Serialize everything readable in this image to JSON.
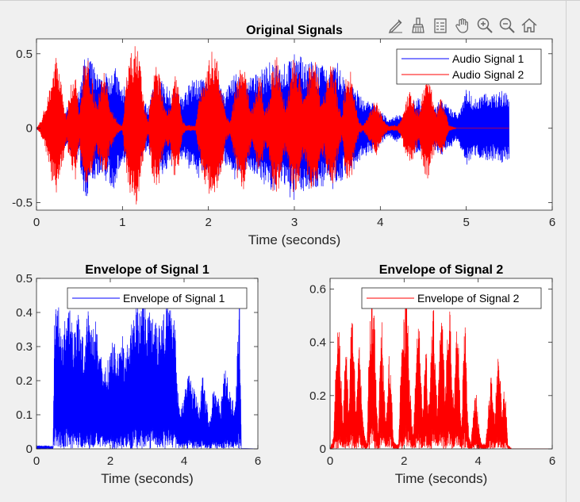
{
  "toolbar": {
    "icons": [
      "edit-plot-icon",
      "brush-icon",
      "legend-icon",
      "pan-hand-icon",
      "zoom-in-icon",
      "zoom-out-icon",
      "home-icon"
    ]
  },
  "colors": {
    "blue": "#0000ff",
    "red": "#ff0000",
    "axes_bg": "#ffffff",
    "figure_bg": "#f0f0f0"
  },
  "chart_data": [
    {
      "type": "line",
      "title": "Original Signals",
      "xlabel": "Time (seconds)",
      "ylabel": "",
      "xlim": [
        0,
        6
      ],
      "ylim": [
        -0.55,
        0.6
      ],
      "xticks": [
        "0",
        "1",
        "2",
        "3",
        "4",
        "5",
        "6"
      ],
      "yticks": [
        "-0.5",
        "0",
        "0.5"
      ],
      "legend": {
        "position": "top-right",
        "entries": [
          "Audio Signal 1",
          "Audio Signal 2"
        ]
      },
      "series": [
        {
          "name": "Audio Signal 1",
          "color": "#0000ff",
          "x": [
            0,
            0.05,
            0.2,
            0.3,
            0.4,
            0.5,
            0.55,
            0.6,
            0.75,
            0.9,
            1.0,
            1.05,
            1.1,
            1.2,
            1.3,
            1.4,
            1.5,
            1.6,
            1.7,
            1.8,
            1.9,
            2.0,
            2.1,
            2.2,
            2.3,
            2.4,
            2.5,
            2.6,
            2.7,
            2.8,
            2.9,
            3.0,
            3.1,
            3.2,
            3.3,
            3.4,
            3.5,
            3.6,
            3.7,
            3.8,
            3.9,
            4.0,
            4.1,
            4.2,
            4.3,
            4.4,
            4.5,
            4.6,
            4.7,
            4.8,
            4.9,
            5.0,
            5.1,
            5.2,
            5.3,
            5.4,
            5.5
          ],
          "y": [
            0.01,
            0.02,
            0.04,
            0.08,
            0.2,
            0.25,
            0.46,
            0.5,
            0.33,
            0.44,
            0.26,
            0.35,
            0.12,
            0.22,
            0.15,
            0.35,
            0.3,
            0.25,
            0.22,
            0.32,
            0.35,
            0.3,
            0.35,
            0.25,
            0.4,
            0.3,
            0.35,
            0.38,
            0.45,
            0.42,
            0.45,
            0.5,
            0.48,
            0.45,
            0.44,
            0.38,
            0.45,
            0.32,
            0.28,
            0.2,
            0.18,
            0.12,
            0.06,
            0.1,
            0.05,
            0.22,
            0.18,
            0.12,
            0.2,
            0.14,
            0.1,
            0.28,
            0.2,
            0.25,
            0.22,
            0.26,
            0.24
          ]
        },
        {
          "name": "Audio Signal 2",
          "color": "#ff0000",
          "x": [
            0,
            0.05,
            0.1,
            0.15,
            0.2,
            0.25,
            0.3,
            0.35,
            0.4,
            0.45,
            0.5,
            0.55,
            0.6,
            0.65,
            0.7,
            0.75,
            0.8,
            0.85,
            0.9,
            0.95,
            1.0,
            1.05,
            1.1,
            1.15,
            1.2,
            1.25,
            1.3,
            1.35,
            1.4,
            1.45,
            1.5,
            1.55,
            1.6,
            1.65,
            1.7,
            1.75,
            1.8,
            1.85,
            1.9,
            1.95,
            2.0,
            2.05,
            2.1,
            2.15,
            2.2,
            2.25,
            2.3,
            2.35,
            2.4,
            2.45,
            2.5,
            2.55,
            2.6,
            2.65,
            2.7,
            2.75,
            2.8,
            2.85,
            2.9,
            2.95,
            3.0,
            3.05,
            3.1,
            3.15,
            3.2,
            3.25,
            3.3,
            3.35,
            3.4,
            3.45,
            3.5,
            3.55,
            3.6,
            3.65,
            3.7,
            3.75,
            3.8,
            3.85,
            3.9,
            3.95,
            4.0,
            4.05,
            4.1,
            4.15,
            4.2,
            4.25,
            4.3,
            4.35,
            4.4,
            4.45,
            4.5,
            4.55,
            4.6,
            4.65,
            4.7,
            4.75,
            4.8,
            4.85,
            4.9,
            5.0,
            5.5
          ],
          "y": [
            0.0,
            0.05,
            0.15,
            0.28,
            0.45,
            0.5,
            0.25,
            0.1,
            0.3,
            0.38,
            0.12,
            0.42,
            0.48,
            0.35,
            0.15,
            0.32,
            0.4,
            0.18,
            0.1,
            0.04,
            0.02,
            0.35,
            0.5,
            0.6,
            0.48,
            0.18,
            0.05,
            0.35,
            0.45,
            0.3,
            0.12,
            0.15,
            0.38,
            0.3,
            0.05,
            0.02,
            0.02,
            0.02,
            0.25,
            0.38,
            0.45,
            0.55,
            0.48,
            0.3,
            0.12,
            0.05,
            0.22,
            0.38,
            0.45,
            0.3,
            0.12,
            0.25,
            0.38,
            0.15,
            0.2,
            0.45,
            0.5,
            0.3,
            0.15,
            0.35,
            0.5,
            0.4,
            0.22,
            0.32,
            0.5,
            0.45,
            0.25,
            0.2,
            0.4,
            0.45,
            0.25,
            0.08,
            0.35,
            0.42,
            0.2,
            0.05,
            0.02,
            0.08,
            0.15,
            0.2,
            0.12,
            0.05,
            0.02,
            0.02,
            0.02,
            0.08,
            0.2,
            0.25,
            0.18,
            0.12,
            0.3,
            0.38,
            0.25,
            0.12,
            0.22,
            0.15,
            0.02,
            0.01,
            0.0,
            0.0,
            0.0
          ]
        }
      ]
    },
    {
      "type": "line",
      "title": "Envelope of Signal 1",
      "xlabel": "Time (seconds)",
      "ylabel": "",
      "xlim": [
        0,
        6
      ],
      "ylim": [
        0,
        0.5
      ],
      "xticks": [
        "0",
        "2",
        "4",
        "6"
      ],
      "yticks": [
        "0",
        "0.1",
        "0.2",
        "0.3",
        "0.4",
        "0.5"
      ],
      "legend": {
        "position": "top-right",
        "entries": [
          "Envelope of Signal 1"
        ]
      },
      "series": [
        {
          "name": "Envelope of Signal 1",
          "color": "#0000ff",
          "x": [
            0,
            0.45,
            0.5,
            0.55,
            0.6,
            0.7,
            0.8,
            0.9,
            1.0,
            1.1,
            1.2,
            1.3,
            1.4,
            1.5,
            1.6,
            1.7,
            1.8,
            1.9,
            2.0,
            2.1,
            2.2,
            2.3,
            2.4,
            2.5,
            2.6,
            2.7,
            2.8,
            2.9,
            3.0,
            3.1,
            3.2,
            3.3,
            3.4,
            3.5,
            3.6,
            3.7,
            3.75,
            3.8,
            3.9,
            4.0,
            4.1,
            4.2,
            4.3,
            4.4,
            4.5,
            4.6,
            4.7,
            4.8,
            4.9,
            5.0,
            5.1,
            5.2,
            5.3,
            5.4,
            5.5,
            5.55
          ],
          "y": [
            0.01,
            0.01,
            0.49,
            0.4,
            0.43,
            0.35,
            0.4,
            0.42,
            0.35,
            0.4,
            0.38,
            0.3,
            0.42,
            0.36,
            0.38,
            0.3,
            0.26,
            0.24,
            0.3,
            0.32,
            0.28,
            0.35,
            0.3,
            0.32,
            0.38,
            0.44,
            0.4,
            0.48,
            0.42,
            0.4,
            0.44,
            0.38,
            0.4,
            0.45,
            0.42,
            0.4,
            0.48,
            0.2,
            0.12,
            0.15,
            0.24,
            0.2,
            0.17,
            0.12,
            0.22,
            0.15,
            0.08,
            0.2,
            0.16,
            0.14,
            0.24,
            0.2,
            0.14,
            0.16,
            0.49,
            0.02
          ]
        }
      ]
    },
    {
      "type": "line",
      "title": "Envelope of Signal 2",
      "xlabel": "Time (seconds)",
      "ylabel": "",
      "xlim": [
        0,
        6
      ],
      "ylim": [
        0,
        0.64
      ],
      "xticks": [
        "0",
        "2",
        "4",
        "6"
      ],
      "yticks": [
        "0",
        "0.2",
        "0.4",
        "0.6"
      ],
      "legend": {
        "position": "top-right",
        "entries": [
          "Envelope of Signal 2"
        ]
      },
      "series": [
        {
          "name": "Envelope of Signal 2",
          "color": "#ff0000",
          "x": [
            0,
            0.1,
            0.15,
            0.2,
            0.25,
            0.3,
            0.35,
            0.4,
            0.45,
            0.5,
            0.55,
            0.6,
            0.65,
            0.7,
            0.75,
            0.8,
            0.85,
            0.9,
            0.95,
            1.0,
            1.05,
            1.1,
            1.15,
            1.2,
            1.25,
            1.3,
            1.35,
            1.4,
            1.45,
            1.5,
            1.55,
            1.6,
            1.65,
            1.7,
            1.75,
            1.8,
            1.85,
            1.9,
            1.95,
            2.0,
            2.05,
            2.1,
            2.15,
            2.2,
            2.25,
            2.3,
            2.35,
            2.4,
            2.45,
            2.5,
            2.55,
            2.6,
            2.65,
            2.7,
            2.75,
            2.8,
            2.85,
            2.9,
            2.95,
            3.0,
            3.05,
            3.1,
            3.15,
            3.2,
            3.25,
            3.3,
            3.35,
            3.4,
            3.45,
            3.5,
            3.55,
            3.6,
            3.65,
            3.7,
            3.75,
            3.8,
            3.85,
            3.9,
            3.95,
            4.0,
            4.05,
            4.1,
            4.15,
            4.2,
            4.25,
            4.3,
            4.35,
            4.4,
            4.45,
            4.5,
            4.55,
            4.6,
            4.65,
            4.7,
            4.75,
            4.8,
            4.85,
            4.9,
            5.0,
            6.0
          ],
          "y": [
            0.0,
            0.05,
            0.3,
            0.45,
            0.5,
            0.28,
            0.1,
            0.35,
            0.42,
            0.12,
            0.45,
            0.5,
            0.38,
            0.15,
            0.35,
            0.45,
            0.2,
            0.1,
            0.04,
            0.02,
            0.38,
            0.55,
            0.63,
            0.5,
            0.2,
            0.05,
            0.38,
            0.48,
            0.32,
            0.12,
            0.18,
            0.4,
            0.32,
            0.05,
            0.02,
            0.02,
            0.02,
            0.28,
            0.42,
            0.5,
            0.62,
            0.52,
            0.3,
            0.12,
            0.05,
            0.25,
            0.42,
            0.48,
            0.3,
            0.12,
            0.28,
            0.42,
            0.15,
            0.22,
            0.5,
            0.55,
            0.3,
            0.15,
            0.38,
            0.55,
            0.45,
            0.22,
            0.35,
            0.55,
            0.5,
            0.25,
            0.2,
            0.45,
            0.5,
            0.25,
            0.08,
            0.38,
            0.48,
            0.2,
            0.05,
            0.02,
            0.1,
            0.18,
            0.22,
            0.12,
            0.05,
            0.02,
            0.02,
            0.02,
            0.1,
            0.22,
            0.28,
            0.2,
            0.12,
            0.32,
            0.45,
            0.28,
            0.12,
            0.25,
            0.18,
            0.02,
            0.01,
            0.0,
            0.0,
            0.0
          ]
        }
      ]
    }
  ]
}
